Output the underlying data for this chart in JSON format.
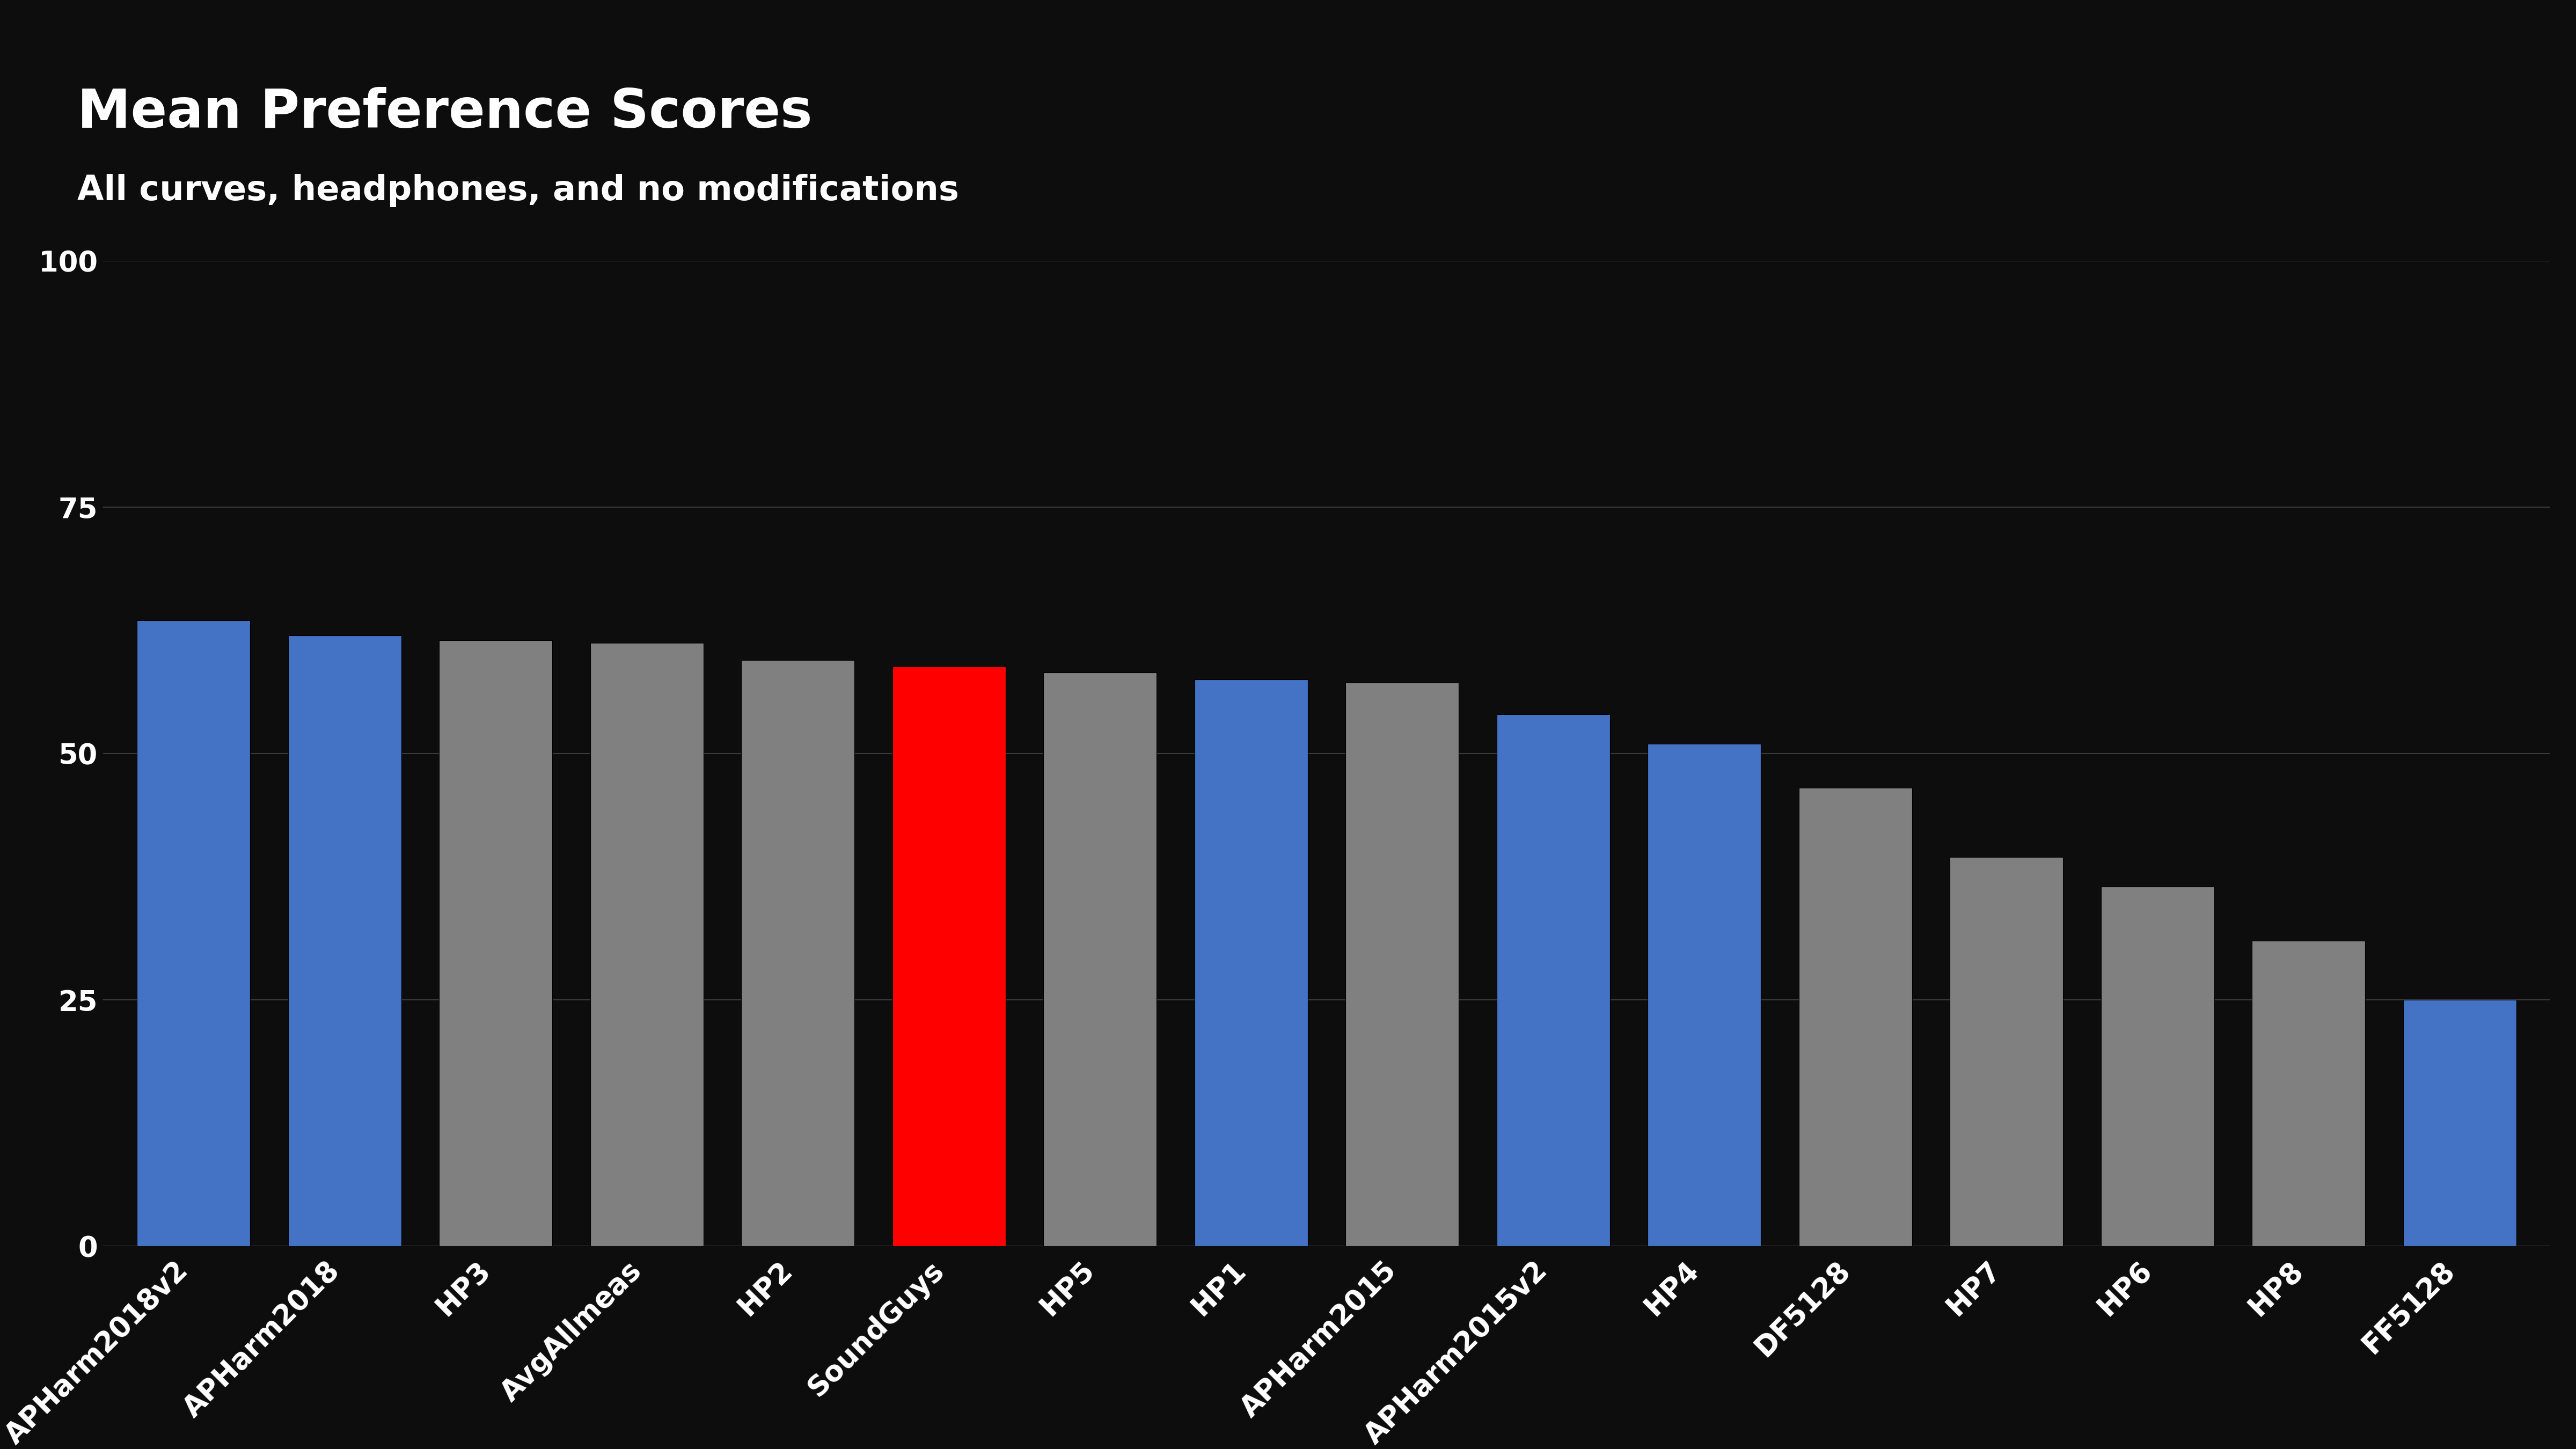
{
  "title": "Mean Preference Scores",
  "subtitle": "All curves, headphones, and no modifications",
  "categories": [
    "APHarm2018v2",
    "APHarm2018",
    "HP3",
    "AvgAllmeas",
    "HP2",
    "SoundGuys",
    "HP5",
    "HP1",
    "APHarm2015",
    "APHarm2015v2",
    "HP4",
    "DF5128",
    "HP7",
    "HP6",
    "HP8",
    "FF5128"
  ],
  "values": [
    63.5,
    62.0,
    61.5,
    61.2,
    59.5,
    58.8,
    58.2,
    57.5,
    57.2,
    54.0,
    51.0,
    46.5,
    39.5,
    36.5,
    31.0,
    25.0
  ],
  "bar_colors": [
    "#4472c4",
    "#4472c4",
    "#808080",
    "#808080",
    "#808080",
    "#ff0000",
    "#808080",
    "#4472c4",
    "#808080",
    "#4472c4",
    "#4472c4",
    "#808080",
    "#808080",
    "#808080",
    "#808080",
    "#4472c4"
  ],
  "background_color": "#0d0d0d",
  "text_color": "#ffffff",
  "grid_color": "#3a3a3a",
  "ylim": [
    0,
    100
  ],
  "yticks": [
    0,
    25,
    50,
    75,
    100
  ],
  "title_fontsize": 72,
  "subtitle_fontsize": 46,
  "tick_fontsize": 38,
  "xlabel_rotation": 45
}
